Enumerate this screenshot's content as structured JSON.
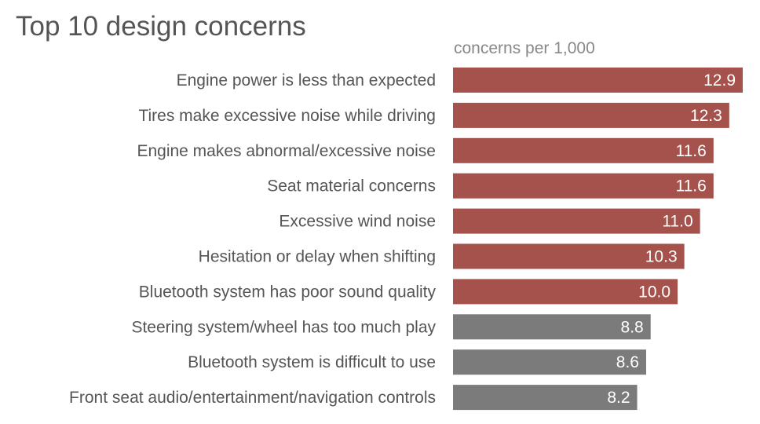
{
  "chart_data": {
    "type": "bar",
    "orientation": "horizontal",
    "title": "Top 10 design concerns",
    "units_label": "concerns per 1,000",
    "categories": [
      "Engine power is less than expected",
      "Tires make excessive noise while driving",
      "Engine makes abnormal/excessive noise",
      "Seat material concerns",
      "Excessive wind noise",
      "Hesitation or delay when shifting",
      "Bluetooth system has poor sound quality",
      "Steering system/wheel has too much play",
      "Bluetooth system is difficult to use",
      "Front seat audio/entertainment/navigation controls"
    ],
    "values": [
      12.9,
      12.3,
      11.6,
      11.6,
      11.0,
      10.3,
      10.0,
      8.8,
      8.6,
      8.2
    ],
    "value_labels": [
      "12.9",
      "12.3",
      "11.6",
      "11.6",
      "11.0",
      "10.3",
      "10.0",
      "8.8",
      "8.6",
      "8.2"
    ],
    "colors": [
      "#a5524c",
      "#a5524c",
      "#a5524c",
      "#a5524c",
      "#a5524c",
      "#a5524c",
      "#a5524c",
      "#7b7b7b",
      "#7b7b7b",
      "#7b7b7b"
    ],
    "xlim": [
      0,
      12.9
    ],
    "grid": false,
    "legend": "none"
  }
}
